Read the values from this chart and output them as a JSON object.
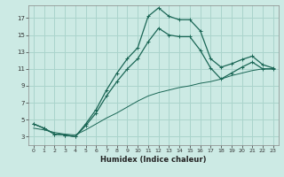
{
  "xlabel": "Humidex (Indice chaleur)",
  "background_color": "#cceae4",
  "grid_color": "#aad4cc",
  "line_color": "#1a6655",
  "xlim": [
    -0.5,
    23.5
  ],
  "ylim": [
    2.0,
    18.5
  ],
  "xticks": [
    0,
    1,
    2,
    3,
    4,
    5,
    6,
    7,
    8,
    9,
    10,
    11,
    12,
    13,
    14,
    15,
    16,
    17,
    18,
    19,
    20,
    21,
    22,
    23
  ],
  "yticks": [
    3,
    5,
    7,
    9,
    11,
    13,
    15,
    17
  ],
  "line1_x": [
    0,
    1,
    2,
    3,
    4,
    5,
    6,
    7,
    8,
    9,
    10,
    11,
    12,
    13,
    14,
    15,
    16,
    17,
    18,
    19,
    20,
    21,
    22,
    23
  ],
  "line1_y": [
    4.5,
    4.0,
    3.3,
    3.2,
    3.0,
    4.5,
    6.2,
    8.5,
    10.5,
    12.2,
    13.5,
    17.2,
    18.2,
    17.2,
    16.8,
    16.8,
    15.5,
    12.2,
    11.2,
    11.6,
    12.1,
    12.5,
    11.5,
    11.1
  ],
  "line2_x": [
    0,
    1,
    2,
    3,
    4,
    5,
    6,
    7,
    8,
    9,
    10,
    11,
    12,
    13,
    14,
    15,
    16,
    17,
    18,
    19,
    20,
    21,
    22,
    23
  ],
  "line2_y": [
    4.5,
    4.0,
    3.3,
    3.2,
    3.0,
    4.3,
    5.8,
    7.8,
    9.5,
    11.0,
    12.2,
    14.2,
    15.8,
    15.0,
    14.8,
    14.8,
    13.2,
    11.1,
    9.8,
    10.5,
    11.2,
    11.8,
    11.0,
    11.0
  ],
  "line3_x": [
    0,
    1,
    2,
    3,
    4,
    5,
    6,
    7,
    8,
    9,
    10,
    11,
    12,
    13,
    14,
    15,
    16,
    17,
    18,
    19,
    20,
    21,
    22,
    23
  ],
  "line3_y": [
    4.0,
    3.8,
    3.5,
    3.3,
    3.2,
    3.8,
    4.5,
    5.2,
    5.8,
    6.5,
    7.2,
    7.8,
    8.2,
    8.5,
    8.8,
    9.0,
    9.3,
    9.5,
    9.8,
    10.2,
    10.5,
    10.8,
    11.0,
    11.0
  ]
}
